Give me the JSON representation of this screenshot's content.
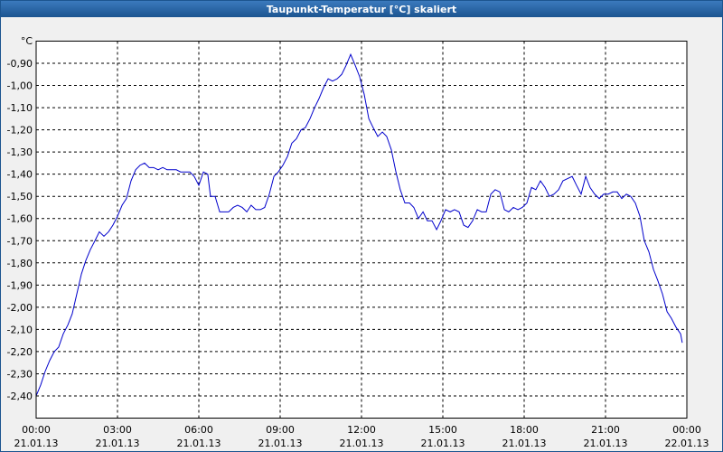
{
  "chart_data": {
    "type": "line",
    "title": "Taupunkt-Temperatur [°C] skaliert",
    "y_label": "°C",
    "xlim": [
      0,
      24
    ],
    "ylim": [
      -2.5,
      -0.8
    ],
    "grid": true,
    "xticks": [
      {
        "value": 0,
        "label": "00:00",
        "date": "21.01.13"
      },
      {
        "value": 3,
        "label": "03:00",
        "date": "21.01.13"
      },
      {
        "value": 6,
        "label": "06:00",
        "date": "21.01.13"
      },
      {
        "value": 9,
        "label": "09:00",
        "date": "21.01.13"
      },
      {
        "value": 12,
        "label": "12:00",
        "date": "21.01.13"
      },
      {
        "value": 15,
        "label": "15:00",
        "date": "21.01.13"
      },
      {
        "value": 18,
        "label": "18:00",
        "date": "21.01.13"
      },
      {
        "value": 21,
        "label": "21:00",
        "date": "21.01.13"
      },
      {
        "value": 24,
        "label": "00:00",
        "date": "22.01.13"
      }
    ],
    "yticks": [
      {
        "value": -2.4,
        "label": "-2,40"
      },
      {
        "value": -2.3,
        "label": "-2,30"
      },
      {
        "value": -2.2,
        "label": "-2,20"
      },
      {
        "value": -2.1,
        "label": "-2,10"
      },
      {
        "value": -2.0,
        "label": "-2,00"
      },
      {
        "value": -1.9,
        "label": "-1,90"
      },
      {
        "value": -1.8,
        "label": "-1,80"
      },
      {
        "value": -1.7,
        "label": "-1,70"
      },
      {
        "value": -1.6,
        "label": "-1,60"
      },
      {
        "value": -1.5,
        "label": "-1,50"
      },
      {
        "value": -1.4,
        "label": "-1,40"
      },
      {
        "value": -1.3,
        "label": "-1,30"
      },
      {
        "value": -1.2,
        "label": "-1,20"
      },
      {
        "value": -1.1,
        "label": "-1,10"
      },
      {
        "value": -1.0,
        "label": "-1,00"
      },
      {
        "value": -0.9,
        "label": "-0,90"
      }
    ],
    "color": "#0000cc",
    "x": [
      0,
      0.17,
      0.33,
      0.5,
      0.67,
      0.83,
      1,
      1.17,
      1.33,
      1.5,
      1.67,
      1.83,
      2,
      2.17,
      2.33,
      2.5,
      2.67,
      2.83,
      3,
      3.17,
      3.33,
      3.5,
      3.67,
      3.83,
      4,
      4.17,
      4.33,
      4.5,
      4.67,
      4.83,
      5,
      5.17,
      5.33,
      5.5,
      5.67,
      5.83,
      6,
      6.17,
      6.33,
      6.43,
      6.6,
      6.77,
      6.93,
      7.1,
      7.27,
      7.43,
      7.6,
      7.77,
      7.93,
      8.1,
      8.27,
      8.43,
      8.6,
      8.77,
      8.93,
      9.1,
      9.27,
      9.43,
      9.6,
      9.77,
      9.93,
      10.1,
      10.27,
      10.43,
      10.6,
      10.77,
      10.93,
      11.1,
      11.27,
      11.43,
      11.6,
      11.77,
      11.93,
      12.1,
      12.27,
      12.43,
      12.6,
      12.77,
      12.93,
      13.1,
      13.27,
      13.43,
      13.6,
      13.77,
      13.93,
      14.1,
      14.27,
      14.43,
      14.6,
      14.77,
      14.93,
      15.1,
      15.27,
      15.43,
      15.6,
      15.77,
      15.93,
      16.1,
      16.27,
      16.43,
      16.6,
      16.77,
      16.93,
      17.1,
      17.27,
      17.43,
      17.6,
      17.77,
      17.93,
      18.1,
      18.27,
      18.43,
      18.6,
      18.77,
      18.93,
      19.1,
      19.27,
      19.43,
      19.6,
      19.77,
      19.93,
      20.1,
      20.27,
      20.43,
      20.6,
      20.77,
      20.93,
      21.1,
      21.27,
      21.43,
      21.6,
      21.77,
      21.93,
      22.1,
      22.27,
      22.43,
      22.6,
      22.77,
      22.93,
      23.1,
      23.27,
      23.43,
      23.6,
      23.77,
      23.83
    ],
    "values": [
      -2.4,
      -2.35,
      -2.29,
      -2.24,
      -2.2,
      -2.18,
      -2.12,
      -2.08,
      -2.03,
      -1.94,
      -1.85,
      -1.79,
      -1.74,
      -1.7,
      -1.66,
      -1.68,
      -1.66,
      -1.63,
      -1.59,
      -1.54,
      -1.51,
      -1.43,
      -1.38,
      -1.36,
      -1.35,
      -1.37,
      -1.37,
      -1.38,
      -1.37,
      -1.38,
      -1.38,
      -1.38,
      -1.39,
      -1.39,
      -1.39,
      -1.41,
      -1.45,
      -1.39,
      -1.4,
      -1.5,
      -1.5,
      -1.57,
      -1.57,
      -1.57,
      -1.55,
      -1.54,
      -1.55,
      -1.57,
      -1.54,
      -1.56,
      -1.56,
      -1.55,
      -1.49,
      -1.41,
      -1.39,
      -1.36,
      -1.32,
      -1.26,
      -1.24,
      -1.2,
      -1.19,
      -1.15,
      -1.1,
      -1.06,
      -1.01,
      -0.97,
      -0.98,
      -0.97,
      -0.95,
      -0.91,
      -0.86,
      -0.91,
      -0.96,
      -1.04,
      -1.15,
      -1.19,
      -1.23,
      -1.21,
      -1.23,
      -1.29,
      -1.39,
      -1.47,
      -1.53,
      -1.53,
      -1.55,
      -1.6,
      -1.57,
      -1.61,
      -1.61,
      -1.65,
      -1.61,
      -1.56,
      -1.57,
      -1.56,
      -1.57,
      -1.63,
      -1.64,
      -1.61,
      -1.56,
      -1.57,
      -1.57,
      -1.49,
      -1.47,
      -1.48,
      -1.56,
      -1.57,
      -1.55,
      -1.56,
      -1.55,
      -1.53,
      -1.46,
      -1.47,
      -1.43,
      -1.46,
      -1.5,
      -1.49,
      -1.47,
      -1.43,
      -1.42,
      -1.41,
      -1.45,
      -1.49,
      -1.41,
      -1.46,
      -1.49,
      -1.51,
      -1.49,
      -1.49,
      -1.48,
      -1.48,
      -1.51,
      -1.49,
      -1.5,
      -1.53,
      -1.59,
      -1.7,
      -1.75,
      -1.83,
      -1.88,
      -1.94,
      -2.02,
      -2.05,
      -2.09,
      -2.12,
      -2.16
    ]
  }
}
